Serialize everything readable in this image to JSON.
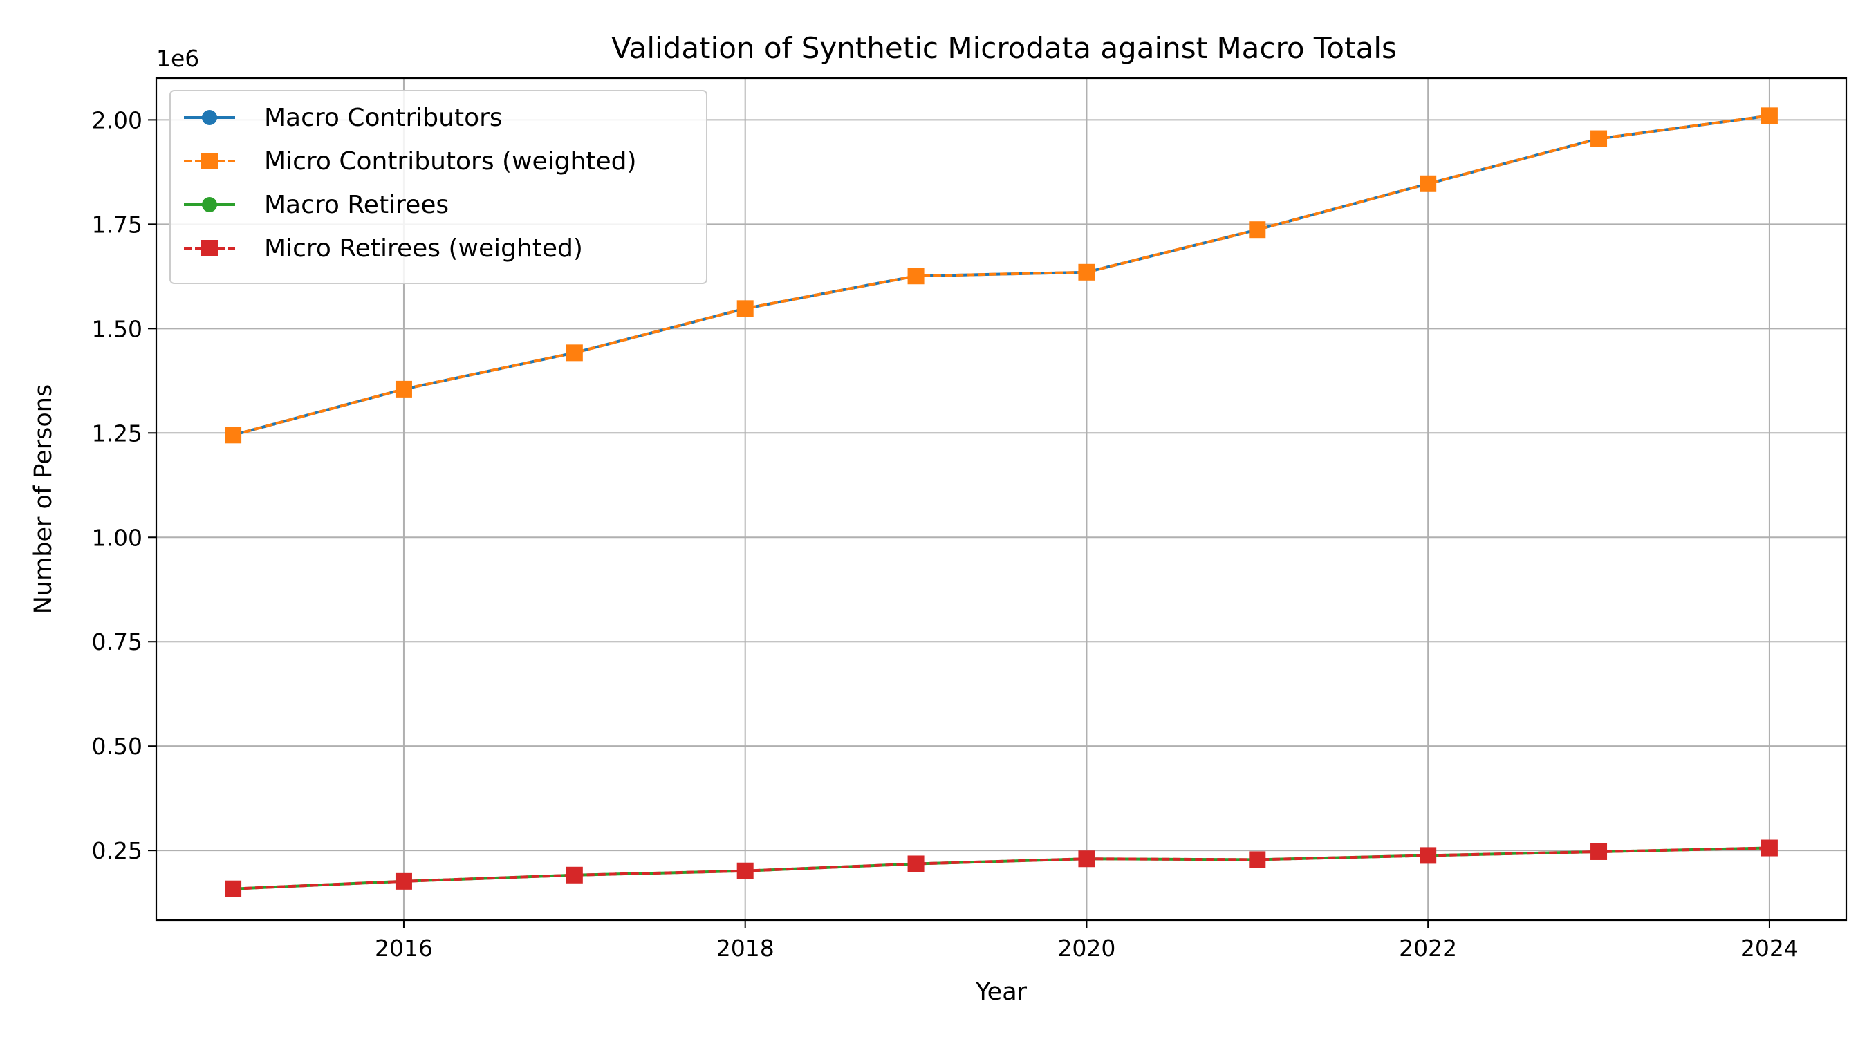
{
  "chart_data": {
    "type": "line",
    "title": "Validation of Synthetic Microdata against Macro Totals",
    "xlabel": "Year",
    "ylabel": "Number of Persons",
    "y_offset_label": "1e6",
    "x": [
      2015,
      2016,
      2017,
      2018,
      2019,
      2020,
      2021,
      2022,
      2023,
      2024
    ],
    "xlim": [
      2014.55,
      2024.45
    ],
    "ylim": [
      0.083,
      2.1
    ],
    "x_ticks": [
      2016,
      2018,
      2020,
      2022,
      2024
    ],
    "x_tick_labels": [
      "2016",
      "2018",
      "2020",
      "2022",
      "2024"
    ],
    "y_ticks": [
      0.25,
      0.5,
      0.75,
      1.0,
      1.25,
      1.5,
      1.75,
      2.0
    ],
    "y_tick_labels": [
      "0.25",
      "0.50",
      "0.75",
      "1.00",
      "1.25",
      "1.50",
      "1.75",
      "2.00"
    ],
    "grid": true,
    "legend_position": "upper-left",
    "series": [
      {
        "name": "Macro Contributors",
        "color": "#1f77b4",
        "linestyle": "solid",
        "marker": "circle",
        "values": [
          1.245,
          1.355,
          1.442,
          1.548,
          1.626,
          1.635,
          1.737,
          1.847,
          1.955,
          2.01
        ]
      },
      {
        "name": "Micro Contributors (weighted)",
        "color": "#ff7f0e",
        "linestyle": "dashed",
        "marker": "square",
        "values": [
          1.245,
          1.355,
          1.442,
          1.548,
          1.626,
          1.635,
          1.737,
          1.847,
          1.955,
          2.01
        ]
      },
      {
        "name": "Macro Retirees",
        "color": "#2ca02c",
        "linestyle": "solid",
        "marker": "circle",
        "values": [
          0.158,
          0.176,
          0.191,
          0.201,
          0.218,
          0.23,
          0.228,
          0.238,
          0.247,
          0.256
        ]
      },
      {
        "name": "Micro Retirees (weighted)",
        "color": "#d62728",
        "linestyle": "dashed",
        "marker": "square",
        "values": [
          0.158,
          0.176,
          0.191,
          0.201,
          0.218,
          0.23,
          0.228,
          0.238,
          0.247,
          0.256
        ]
      }
    ]
  }
}
